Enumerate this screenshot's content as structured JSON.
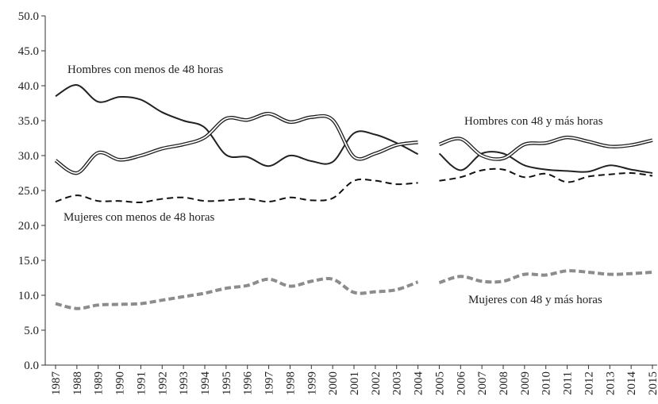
{
  "chart_data": {
    "type": "line",
    "categories": [
      "1987",
      "1988",
      "1989",
      "1990",
      "1991",
      "1992",
      "1993",
      "1994",
      "1995",
      "1996",
      "1997",
      "1998",
      "1999",
      "2000",
      "2001",
      "2002",
      "2003",
      "2004",
      "2005",
      "2006",
      "2007",
      "2008",
      "2009",
      "2010",
      "2011",
      "2012",
      "2013",
      "2014",
      "2015"
    ],
    "line_break_after": "2004",
    "series": [
      {
        "name": "Hombres con menos de 48 horas",
        "color": "#222222",
        "style": "solid",
        "values": [
          38.5,
          40.1,
          37.7,
          38.4,
          38.0,
          36.2,
          35.0,
          34.0,
          30.1,
          29.8,
          28.5,
          30.0,
          29.2,
          29.1,
          33.2,
          33.0,
          31.8,
          30.2,
          30.3,
          27.9,
          30.3,
          30.3,
          28.6,
          28.0,
          27.8,
          27.7,
          28.6,
          28.0,
          27.5
        ]
      },
      {
        "name": "Hombres con 48 y más horas",
        "color": "#222222",
        "style": "double",
        "values": [
          29.3,
          27.5,
          30.4,
          29.4,
          30.0,
          31.0,
          31.6,
          32.6,
          35.3,
          35.1,
          36.0,
          34.8,
          35.5,
          35.1,
          29.8,
          30.3,
          31.5,
          31.9,
          31.6,
          32.4,
          30.0,
          29.6,
          31.6,
          31.8,
          32.6,
          32.0,
          31.3,
          31.5,
          32.2
        ]
      },
      {
        "name": "Mujeres con menos de 48 horas",
        "color": "#111111",
        "style": "dashed",
        "values": [
          23.4,
          24.3,
          23.5,
          23.5,
          23.3,
          23.8,
          24.0,
          23.5,
          23.6,
          23.8,
          23.4,
          24.0,
          23.6,
          23.9,
          26.4,
          26.4,
          25.9,
          26.1,
          26.4,
          26.9,
          27.9,
          28.0,
          26.9,
          27.4,
          26.2,
          27.0,
          27.3,
          27.5,
          27.1
        ]
      },
      {
        "name": "Mujeres con 48 y más horas",
        "color": "#8c8c8c",
        "style": "thick-dashed",
        "values": [
          8.8,
          8.1,
          8.6,
          8.7,
          8.8,
          9.3,
          9.8,
          10.3,
          11.0,
          11.4,
          12.3,
          11.3,
          12.0,
          12.3,
          10.4,
          10.5,
          10.8,
          11.9,
          11.8,
          12.7,
          12.0,
          12.0,
          13.0,
          12.9,
          13.5,
          13.3,
          13.0,
          13.1,
          13.3
        ]
      }
    ],
    "ylim": [
      0,
      50
    ],
    "yticks": [
      {
        "value": 0,
        "label": "0.0"
      },
      {
        "value": 5,
        "label": "5.0"
      },
      {
        "value": 10,
        "label": "10.0"
      },
      {
        "value": 15,
        "label": "15.0"
      },
      {
        "value": 20,
        "label": "20.0"
      },
      {
        "value": 25,
        "label": "25.0"
      },
      {
        "value": 30,
        "label": "30.0"
      },
      {
        "value": 35,
        "label": "35.0"
      },
      {
        "value": 40,
        "label": "40.0"
      },
      {
        "value": 45,
        "label": "45.0"
      },
      {
        "value": 50,
        "label": "50.0"
      }
    ],
    "grid": false
  }
}
